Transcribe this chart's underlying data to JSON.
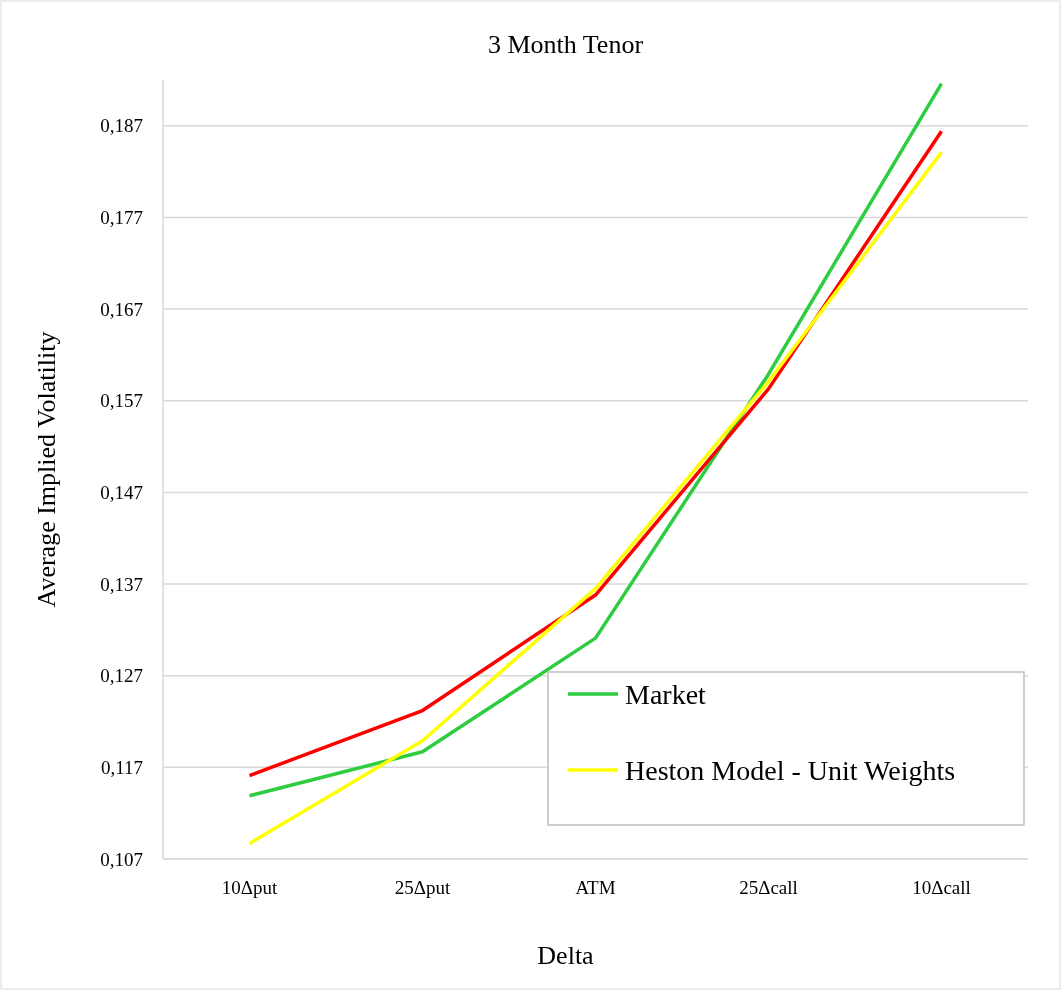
{
  "chart_data": {
    "type": "line",
    "title": "3 Month Tenor",
    "xlabel": "Delta",
    "ylabel": "Average Implied Volatility",
    "categories": [
      "10Δput",
      "25Δput",
      "ATM",
      "25Δcall",
      "10Δcall"
    ],
    "series": [
      {
        "name": "Market",
        "color": "#2ecc40",
        "values": [
          0.1139,
          0.1187,
          0.1311,
          0.1599,
          0.1916
        ]
      },
      {
        "color": "#ff0000",
        "values": [
          0.1161,
          0.1232,
          0.1358,
          0.1583,
          0.1864
        ]
      },
      {
        "name": "Heston Model - Unit Weights",
        "color": "#ffff00",
        "values": [
          0.1087,
          0.1199,
          0.1365,
          0.1591,
          0.1841
        ]
      }
    ],
    "ylim": [
      0.107,
      0.192
    ],
    "yticks": [
      {
        "value": 0.107,
        "label": "0,107"
      },
      {
        "value": 0.117,
        "label": "0,117"
      },
      {
        "value": 0.127,
        "label": "0,127"
      },
      {
        "value": 0.137,
        "label": "0,137"
      },
      {
        "value": 0.147,
        "label": "0,147"
      },
      {
        "value": 0.157,
        "label": "0,157"
      },
      {
        "value": 0.167,
        "label": "0,167"
      },
      {
        "value": 0.177,
        "label": "0,177"
      },
      {
        "value": 0.187,
        "label": "0,187"
      }
    ],
    "grid": "y",
    "legend": "bottom right",
    "marker": "none",
    "line_style": "solid"
  }
}
